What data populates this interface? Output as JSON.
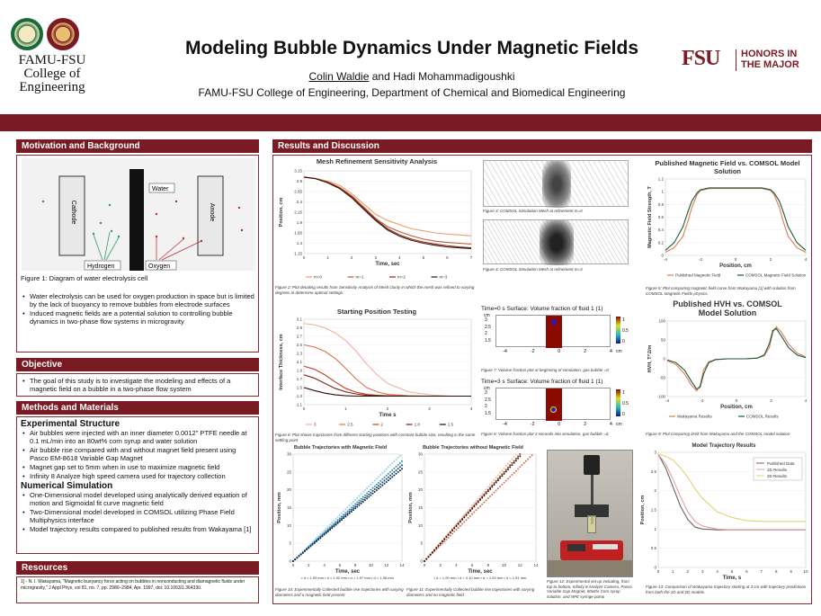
{
  "header": {
    "title": "Modeling Bubble Dynamics Under Magnetic Fields",
    "authors_underlined": "Colin Waldie",
    "authors_rest": " and Hadi Mohammadigoushki",
    "affiliation": "FAMU-FSU College of Engineering, Department of Chemical and Biomedical Engineering",
    "logo_left_line1": "FAMU-FSU",
    "logo_left_line2": "College of",
    "logo_left_line3": "Engineering",
    "logo_right_mark": "FSU",
    "logo_right_line1": "HONORS IN",
    "logo_right_line2": "THE MAJOR",
    "accent_color": "#7a1a22"
  },
  "motivation": {
    "heading": "Motivation and Background",
    "diagram": {
      "cathode": "Cathode",
      "membrane": "Membrane",
      "anode": "Anode",
      "water": "Water",
      "hydrogen": "Hydrogen",
      "oxygen": "Oxygen"
    },
    "figure_caption": "Figure 1: Diagram of water electrolysis cell",
    "bullets": [
      "Water electrolysis can be used for oxygen production in space but is limited by the lack of buoyancy to remove bubbles from electrode surfaces",
      "Induced magnetic fields are a potential solution to controlling bubble dynamics in two-phase flow systems in microgravity"
    ]
  },
  "objective": {
    "heading": "Objective",
    "bullets": [
      "The goal of this study is to investigate the modeling and effects of a magnetic field on a bubble in a two-phase flow system"
    ]
  },
  "methods": {
    "heading": "Methods and Materials",
    "exp_heading": "Experimental Structure",
    "exp_bullets": [
      "Air bubbles were injected with an inner diameter 0.0012\" PTFE needle at 0.1 mL/min into an 80wt% corn syrup and water solution",
      "Air bubble rise compared with and without magnet field present using Pasco EM-8618 Variable Gap Magnet",
      "Magnet gap set to 5mm when in use to maximize magnetic field",
      "Infinity 8 Analyze high speed camera used for trajectory collection"
    ],
    "num_heading": "Numerical Simulation",
    "num_bullets": [
      "One-Dimensional model developed using analytically derived equation of motion and Sigmoidal fit curve magnetic field",
      "Two-Dimensional model developed in COMSOL utilizing Phase Field Multiphysics interface",
      "Model trajectory results compared to published results from Wakayama [1]"
    ]
  },
  "resources": {
    "heading": "Resources",
    "text": "1] - N. I. Wakayama, \"Magnetic buoyancy force acting on bubbles in nonconducting and diamagnetic fluids under microgravity,\" J Appl Phys, vol 81, no. 7, pp. 2980–2984, Apr. 1997, doi: 10.1063/1.364330."
  },
  "results": {
    "heading": "Results and Discussion",
    "fig2_caption": "Figure 2: Plot detailing results from Sensitivity Analysis of Mesh clarity in which the mesh was refined to varying degrees to determine optimal settings.",
    "fig3_caption": "Figure 3: COMSOL Simulation Mesh at refinement m=0",
    "fig4_caption": "Figure 4: COMSOL Simulation Mesh at refinement m=3",
    "fig5_caption": "Figure 5: Plot comparing magnetic field curve from Wakayama [1] with solution from COMSOL Magnetic Fields physics.",
    "fig6_caption": "Figure 6: Plot shows trajectories from different starting positions with constant bubble size, resulting in the same settling point",
    "fig7_caption": "Figure 7: Volume fraction plot at beginning of simulation, gas bubble =0",
    "fig8_caption": "Figure 8: Volume fraction plot 3 seconds into simulation, gas bubble =0,",
    "fig9_caption": "Figure 9: Plot comparing ∂H/∂ from Wakayama and the COMSOL model solution",
    "fig10_caption": "Figure 10: Experimentally Collected bubble rise trajectories with varying diameters and a magnetic field present",
    "fig11_caption": "Figure 11: Experimentally Collected bubble rise trajectories with varying diameters and no magnetic field",
    "fig12_caption": "Figure 12: Experimental set up including, from top to bottom, Infinity 8 Analyze Camera, Pasco Variable Gap Magnet, 80wt% Corn syrup solution, and NPE syringe pump",
    "fig13_caption": "Figure 13: Comparison of Wakayama trajectory starting at 3 cm with trajectory predictions from both the 1D and 2D models.",
    "sim7_title": "Time=0 s  Surface: Volume fraction of fluid 1 (1)",
    "sim8_title": "Time=3 s  Surface: Volume fraction of fluid 1 (1)",
    "sim_unit": "cm",
    "sim_ticks_y": [
      "3",
      "2.5",
      "2",
      "1.5"
    ],
    "sim_ticks_x": [
      "-4",
      "-2",
      "0",
      "2",
      "4"
    ],
    "sim_unit_x": "cm",
    "colorbar_ticks": [
      "1",
      "0.5",
      "0"
    ]
  },
  "chart_data": [
    {
      "type": "line",
      "title": "Mesh Refinement Sensitivity Analysis",
      "xlabel": "Time, sec",
      "ylabel": "Position, cm",
      "xlim": [
        0,
        7
      ],
      "ylim": [
        1.15,
        3.15
      ],
      "x_ticks": [
        "0",
        "1",
        "2",
        "3",
        "4",
        "5",
        "6",
        "7"
      ],
      "y_ticks": [
        "3.15",
        "2.9",
        "2.65",
        "2.4",
        "2.15",
        "1.9",
        "1.65",
        "1.4",
        "1.15"
      ],
      "legend": "bottom",
      "x": [
        0,
        0.5,
        1,
        1.5,
        2,
        2.5,
        3,
        3.5,
        4,
        4.5,
        5,
        5.5,
        6,
        6.5,
        7
      ],
      "series": [
        {
          "name": "m=0",
          "color": "#e8a070",
          "values": [
            3.0,
            2.97,
            2.9,
            2.8,
            2.6,
            2.35,
            2.1,
            1.95,
            1.85,
            1.75,
            1.7,
            1.65,
            1.62,
            1.6,
            1.58
          ]
        },
        {
          "name": "m=1",
          "color": "#c05a3a",
          "values": [
            3.0,
            2.96,
            2.88,
            2.75,
            2.55,
            2.28,
            2.0,
            1.8,
            1.68,
            1.58,
            1.5,
            1.45,
            1.42,
            1.4,
            1.38
          ]
        },
        {
          "name": "m=2",
          "color": "#8a2a1a",
          "values": [
            3.0,
            2.96,
            2.87,
            2.73,
            2.52,
            2.25,
            1.98,
            1.75,
            1.6,
            1.5,
            1.43,
            1.38,
            1.34,
            1.31,
            1.29
          ]
        },
        {
          "name": "m=3",
          "color": "#3a1008",
          "values": [
            3.0,
            2.96,
            2.86,
            2.72,
            2.5,
            2.22,
            1.95,
            1.72,
            1.57,
            1.47,
            1.4,
            1.35,
            1.31,
            1.29,
            1.27
          ]
        }
      ]
    },
    {
      "type": "line",
      "title": "Starting Position Testing",
      "xlabel": "Time s",
      "ylabel": "Interface Thickness, cm",
      "xlim": [
        0,
        4
      ],
      "ylim": [
        1.1,
        3.1
      ],
      "x_ticks": [
        "0",
        "1",
        "2",
        "3",
        "4"
      ],
      "y_ticks": [
        "3.1",
        "2.9",
        "2.7",
        "2.5",
        "2.3",
        "2.1",
        "1.9",
        "1.7",
        "1.5",
        "1.3",
        "1.1"
      ],
      "legend": "bottom",
      "x": [
        0,
        0.25,
        0.5,
        0.75,
        1,
        1.25,
        1.5,
        1.75,
        2,
        2.5,
        3,
        3.5,
        4
      ],
      "series": [
        {
          "name": "3",
          "color": "#f0b0a0",
          "values": [
            3.0,
            2.97,
            2.9,
            2.78,
            2.6,
            2.35,
            2.05,
            1.8,
            1.6,
            1.4,
            1.33,
            1.3,
            1.3
          ]
        },
        {
          "name": "2.5",
          "color": "#e07050",
          "values": [
            2.5,
            2.45,
            2.35,
            2.18,
            1.95,
            1.7,
            1.5,
            1.4,
            1.34,
            1.31,
            1.3,
            1.3,
            1.3
          ]
        },
        {
          "name": "2",
          "color": "#c04020",
          "values": [
            2.0,
            1.93,
            1.8,
            1.63,
            1.48,
            1.39,
            1.34,
            1.32,
            1.31,
            1.3,
            1.3,
            1.3,
            1.3
          ]
        },
        {
          "name": "1.8",
          "color": "#7a2010",
          "values": [
            1.8,
            1.72,
            1.6,
            1.48,
            1.4,
            1.35,
            1.32,
            1.31,
            1.3,
            1.3,
            1.3,
            1.3,
            1.3
          ]
        },
        {
          "name": "1.5",
          "color": "#2a0a04",
          "values": [
            1.5,
            1.43,
            1.37,
            1.33,
            1.31,
            1.3,
            1.3,
            1.3,
            1.3,
            1.3,
            1.3,
            1.3,
            1.3
          ]
        }
      ]
    },
    {
      "type": "line",
      "title": "Published Magnetic Field vs. COMSOL Model Solution",
      "xlabel": "Position, cm",
      "ylabel": "Magnetic Field Strength, T",
      "xlim": [
        -4,
        4
      ],
      "ylim": [
        0,
        1.2
      ],
      "x_ticks": [
        "-4",
        "-2",
        "0",
        "2",
        "4"
      ],
      "y_ticks": [
        "1.2",
        "1",
        "0.8",
        "0.6",
        "0.4",
        "0.2",
        "0"
      ],
      "legend": "bottom",
      "x": [
        -4,
        -3.5,
        -3,
        -2.7,
        -2.5,
        -2.2,
        -2,
        -1.5,
        -1,
        0,
        1,
        1.5,
        2,
        2.2,
        2.5,
        2.7,
        3,
        3.5,
        4
      ],
      "series": [
        {
          "name": "Published Magnetic Field",
          "color": "#e07a50",
          "values": [
            0.05,
            0.12,
            0.3,
            0.55,
            0.75,
            0.95,
            1.02,
            1.05,
            1.05,
            1.05,
            1.05,
            1.05,
            1.02,
            0.95,
            0.75,
            0.55,
            0.3,
            0.12,
            0.05
          ]
        },
        {
          "name": "COMSOL Magnetic Field Solution",
          "color": "#1a5a3a",
          "values": [
            0.08,
            0.2,
            0.45,
            0.7,
            0.85,
            0.98,
            1.03,
            1.06,
            1.06,
            1.06,
            1.06,
            1.06,
            1.03,
            0.98,
            0.85,
            0.7,
            0.45,
            0.2,
            0.08
          ]
        }
      ]
    },
    {
      "type": "line",
      "title": "Published HVH vs. COMSOL Model Solution",
      "xlabel": "Position, cm",
      "ylabel": "HVH, T^2/m",
      "xlim": [
        -4,
        4
      ],
      "ylim": [
        -100,
        100
      ],
      "x_ticks": [
        "-4",
        "-2",
        "0",
        "2",
        "4"
      ],
      "y_ticks": [
        "100",
        "50",
        "0",
        "-50",
        "-100"
      ],
      "legend": "bottom",
      "x": [
        -4,
        -3.5,
        -3,
        -2.6,
        -2.3,
        -2.1,
        -1.9,
        -1.6,
        -1.2,
        -0.5,
        0,
        0.5,
        1.2,
        1.6,
        1.9,
        2.1,
        2.3,
        2.6,
        3,
        3.5,
        4
      ],
      "series": [
        {
          "name": "Wakayama Results",
          "color": "#e07a50",
          "values": [
            -5,
            -15,
            -40,
            -70,
            -85,
            -70,
            -30,
            -8,
            -2,
            0,
            0,
            0,
            2,
            8,
            30,
            70,
            85,
            70,
            40,
            15,
            5
          ]
        },
        {
          "name": "COMSOL Results",
          "color": "#1a5a3a",
          "values": [
            -3,
            -10,
            -30,
            -60,
            -80,
            -75,
            -40,
            -10,
            -2,
            0,
            0,
            0,
            2,
            10,
            40,
            75,
            80,
            60,
            30,
            10,
            3
          ]
        }
      ]
    },
    {
      "type": "scatter",
      "title": "Bubble Trajectories with Magnetic Field",
      "xlabel": "Time, sec",
      "ylabel": "Position, mm",
      "xlim": [
        0,
        14
      ],
      "ylim": [
        0,
        30
      ],
      "x_ticks": [
        "0",
        "2",
        "4",
        "6",
        "8",
        "10",
        "12",
        "14"
      ],
      "y_ticks": [
        "30",
        "25",
        "20",
        "15",
        "10",
        "5",
        "0"
      ],
      "legend_text": "• d = 1.90 mm  • d = 1.92 mm  • d = 1.97 mm  • d = 1.96 mm",
      "series": [
        {
          "name": "d = 1.90 mm",
          "color": "#9ad0e8",
          "slope": 2.15
        },
        {
          "name": "d = 1.92 mm",
          "color": "#3a8ab8",
          "slope": 2.0
        },
        {
          "name": "d = 1.97 mm",
          "color": "#1a4a70",
          "slope": 1.92
        },
        {
          "name": "d = 1.96 mm",
          "color": "#0a2a44",
          "slope": 1.85
        }
      ]
    },
    {
      "type": "scatter",
      "title": "Bubble Trajectories without Magnetic Field",
      "xlabel": "Time, sec",
      "ylabel": "Position, mm",
      "xlim": [
        0,
        14
      ],
      "ylim": [
        0,
        30
      ],
      "x_ticks": [
        "0",
        "2",
        "4",
        "6",
        "8",
        "10",
        "12",
        "14"
      ],
      "y_ticks": [
        "30",
        "25",
        "20",
        "15",
        "10",
        "5",
        "0"
      ],
      "legend_text": "• d = 1.90 mm  • d = 0.10 mm  • d = 1.93 mm  • d = 1.91 mm",
      "series": [
        {
          "name": "d = 1.90 mm",
          "color": "#f0b8a0",
          "slope": 2.6
        },
        {
          "name": "d = 0.10 mm",
          "color": "#d07050",
          "slope": 2.2
        },
        {
          "name": "d = 1.93 mm",
          "color": "#8a3a1a",
          "slope": 2.5
        },
        {
          "name": "d = 1.91 mm",
          "color": "#3a1408",
          "slope": 2.45
        }
      ]
    },
    {
      "type": "line",
      "title": "Model Trajectory Results",
      "xlabel": "Time, s",
      "ylabel": "Position, cm",
      "xlim": [
        0,
        10
      ],
      "ylim": [
        0,
        3
      ],
      "x_ticks": [
        "0",
        "1",
        "2",
        "3",
        "4",
        "5",
        "6",
        "7",
        "8",
        "9",
        "10"
      ],
      "y_ticks": [
        "3",
        "2.5",
        "2",
        "1.5",
        "1",
        "0.5",
        "0"
      ],
      "legend": "top-right",
      "x": [
        0,
        0.5,
        1,
        1.5,
        2,
        2.5,
        3,
        4,
        5,
        6,
        7,
        8,
        9,
        10
      ],
      "series": [
        {
          "name": "Published Data",
          "color": "#666666",
          "values": [
            2.95,
            2.6,
            2.1,
            1.6,
            1.25,
            1.05,
            1.0,
            0.98,
            0.98,
            0.98,
            0.98,
            0.98,
            0.98,
            0.98
          ]
        },
        {
          "name": "1D Results",
          "color": "#e8a0a0",
          "values": [
            2.95,
            2.7,
            2.3,
            1.85,
            1.45,
            1.2,
            1.08,
            1.0,
            0.98,
            0.98,
            0.98,
            0.98,
            0.98,
            0.98
          ]
        },
        {
          "name": "2D Results",
          "color": "#e8d070",
          "values": [
            2.95,
            2.9,
            2.8,
            2.6,
            2.35,
            2.05,
            1.8,
            1.45,
            1.3,
            1.22,
            1.2,
            1.2,
            1.2,
            1.2
          ]
        }
      ]
    }
  ]
}
